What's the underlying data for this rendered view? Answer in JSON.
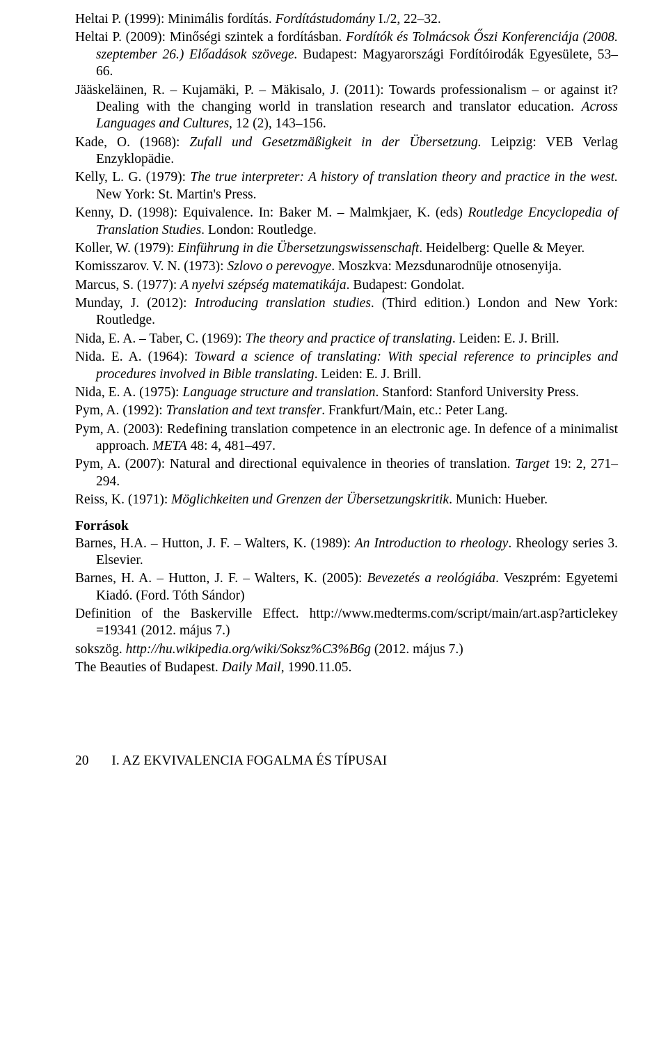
{
  "refs": [
    {
      "pre": "Heltai P. (1999): Minimális fordítás. ",
      "ital1": "Fordítástudomány",
      "post": " I./2, 22–32."
    },
    {
      "pre": "Heltai P. (2009): Minőségi szintek a fordításban. ",
      "ital1": "Fordítók és Tolmácsok Őszi Konferenciája (2008. szeptember 26.) Előadások szövege.",
      "post": " Budapest: Magyarországi Fordítóirodák Egyesülete, 53–66."
    },
    {
      "pre": "Jääskeläinen, R. – Kujamäki, P. – Mäkisalo, J. (2011): Towards professionalism – or against it? Dealing with the changing world in translation research and translator education. ",
      "ital1": "Across Languages and Cultures,",
      "post": " 12 (2), 143–156."
    },
    {
      "pre": "Kade, O. (1968): ",
      "ital1": "Zufall und Gesetzmäßigkeit in der Übersetzung.",
      "post": " Leipzig: VEB Verlag Enzyklopädie."
    },
    {
      "pre": "Kelly, L. G. (1979): ",
      "ital1": "The true interpreter: A history of translation theory and practice in the west.",
      "post": " New York: St. Martin's Press."
    },
    {
      "pre": "Kenny, D. (1998): Equivalence. In: Baker M. – Malmkjaer, K. (eds) ",
      "ital1": "Routledge Encyclopedia of Translation Studies",
      "post": ". London: Routledge."
    },
    {
      "pre": "Koller, W. (1979): ",
      "ital1": "Einführung in die Übersetzungswissenschaft",
      "post": ". Heidelberg: Quelle & Meyer."
    },
    {
      "pre": "Komisszarov. V. N. (1973): ",
      "ital1": "Szlovo o perevogye",
      "post": ". Moszkva: Mezsdunarodnüje otnosenyija."
    },
    {
      "pre": "Marcus, S. (1977): ",
      "ital1": "A nyelvi szépség matematikája",
      "post": ". Budapest: Gondolat."
    },
    {
      "pre": "Munday, J. (2012): ",
      "ital1": "Introducing translation studies",
      "post": ". (Third edition.) London and New York: Routledge."
    },
    {
      "pre": "Nida, E. A. – Taber, C. (1969): ",
      "ital1": "The theory and practice of translating",
      "post": ". Leiden: E. J. Brill."
    },
    {
      "pre": "Nida. E. A. (1964): ",
      "ital1": "Toward a science of translating: With special reference to principles and procedures involved in Bible translating",
      "post": ". Leiden: E. J. Brill."
    },
    {
      "pre": "Nida, E. A. (1975): ",
      "ital1": "Language structure and translation",
      "post": ". Stanford: Stanford University Press."
    },
    {
      "pre": "Pym, A. (1992): ",
      "ital1": "Translation and text transfer",
      "post": ". Frankfurt/Main, etc.: Peter Lang."
    },
    {
      "pre": "Pym, A. (2003): Redefining translation competence in an electronic age. In defence of a minimalist approach. ",
      "ital1": "META",
      "post": " 48: 4, 481–497."
    },
    {
      "pre": "Pym, A. (2007): Natural and directional equivalence in theories of translation. ",
      "ital1": "Target",
      "post": " 19: 2, 271–294."
    },
    {
      "pre": "Reiss, K. (1971): ",
      "ital1": "Möglichkeiten und Grenzen der Übersetzungskritik",
      "post": ". Munich: Hueber."
    }
  ],
  "sourcesHeading": "Források",
  "sources": [
    {
      "pre": "Barnes, H.A. – Hutton, J. F. – Walters, K. (1989): ",
      "ital1": "An Introduction to rheology",
      "post": ". Rheology series 3. Elsevier."
    },
    {
      "pre": "Barnes, H. A. – Hutton, J. F. – Walters, K. (2005): ",
      "ital1": "Bevezetés a reológiába",
      "post": ". Veszprém: Egyetemi Kiadó. (Ford. Tóth Sándor)"
    },
    {
      "pre": "Definition of the Baskerville Effect. http://www.medterms.com/script/main/art.asp?articlekey =19341 (2012. május 7.)",
      "ital1": "",
      "post": ""
    },
    {
      "pre": "sokszög. ",
      "ital1": "http://hu.wikipedia.org/wiki/Soksz%C3%B6g",
      "post": " (2012. május 7.)"
    },
    {
      "pre": "The Beauties of Budapest. ",
      "ital1": "Daily Mail",
      "post": ", 1990.11.05."
    }
  ],
  "footer": {
    "pageNumber": "20",
    "sectionTitle": "I. AZ EKVIVALENCIA FOGALMA ÉS TÍPUSAI"
  }
}
